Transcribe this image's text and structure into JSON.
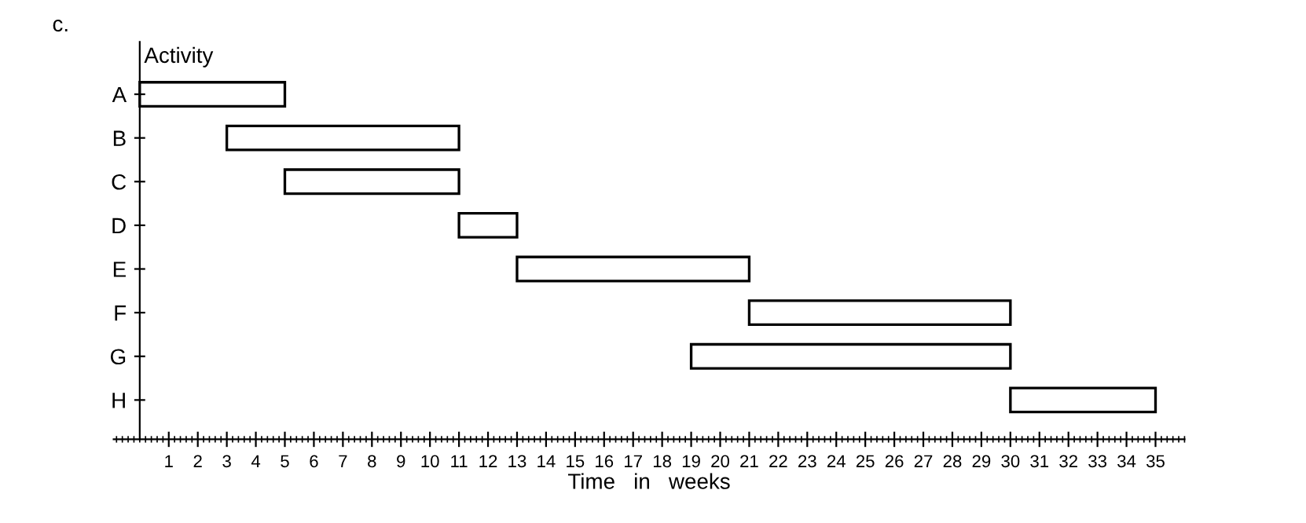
{
  "chart_data": {
    "type": "bar",
    "orientation": "horizontal",
    "ylabel": "Activity",
    "xlabel": "Time   in   weeks",
    "annotations": [
      "c."
    ],
    "categories": [
      "A",
      "B",
      "C",
      "D",
      "E",
      "F",
      "G",
      "H"
    ],
    "base": [
      0,
      3,
      5,
      11,
      13,
      21,
      19,
      30
    ],
    "values": [
      5,
      8,
      6,
      2,
      8,
      9,
      11,
      5
    ],
    "color": "#ffffff",
    "xlim": [
      -0.9,
      36
    ],
    "xticks": [
      1,
      2,
      3,
      4,
      5,
      6,
      7,
      8,
      9,
      10,
      11,
      12,
      13,
      14,
      15,
      16,
      17,
      18,
      19,
      20,
      21,
      22,
      23,
      24,
      25,
      26,
      27,
      28,
      29,
      30,
      31,
      32,
      33,
      34,
      35
    ],
    "grid": false,
    "legend": false
  }
}
